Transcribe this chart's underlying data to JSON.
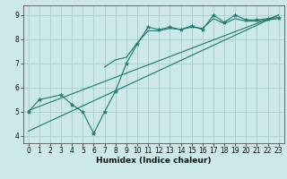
{
  "bg_color": "#cce8e8",
  "grid_color": "#aacccc",
  "line_color": "#1a7a6e",
  "xlabel": "Humidex (Indice chaleur)",
  "xlim": [
    -0.5,
    23.5
  ],
  "ylim": [
    3.7,
    9.4
  ],
  "xticks": [
    0,
    1,
    2,
    3,
    4,
    5,
    6,
    7,
    8,
    9,
    10,
    11,
    12,
    13,
    14,
    15,
    16,
    17,
    18,
    19,
    20,
    21,
    22,
    23
  ],
  "yticks": [
    4,
    5,
    6,
    7,
    8,
    9
  ],
  "zigzag_x": [
    0,
    1,
    3,
    4,
    5,
    6,
    7,
    8,
    9,
    10,
    11,
    12,
    13,
    14,
    15,
    16,
    17,
    18,
    19,
    20,
    21,
    22,
    23
  ],
  "zigzag_y": [
    5.0,
    5.5,
    5.7,
    5.3,
    5.0,
    4.1,
    5.0,
    5.85,
    7.0,
    7.8,
    8.5,
    8.4,
    8.5,
    8.4,
    8.55,
    8.4,
    9.0,
    8.7,
    9.0,
    8.8,
    8.8,
    8.85,
    8.9
  ],
  "trend1_x": [
    0,
    23
  ],
  "trend1_y": [
    5.05,
    9.0
  ],
  "trend2_x": [
    0,
    23
  ],
  "trend2_y": [
    4.2,
    9.0
  ],
  "smooth_x": [
    7,
    8,
    9,
    10,
    11,
    12,
    13,
    14,
    15,
    16,
    17,
    18,
    19,
    20,
    21,
    22,
    23
  ],
  "smooth_y": [
    6.85,
    7.15,
    7.25,
    7.85,
    8.35,
    8.35,
    8.45,
    8.4,
    8.5,
    8.45,
    8.85,
    8.65,
    8.85,
    8.75,
    8.75,
    8.8,
    8.85
  ],
  "xlabel_fontsize": 6.5,
  "tick_fontsize": 5.5
}
